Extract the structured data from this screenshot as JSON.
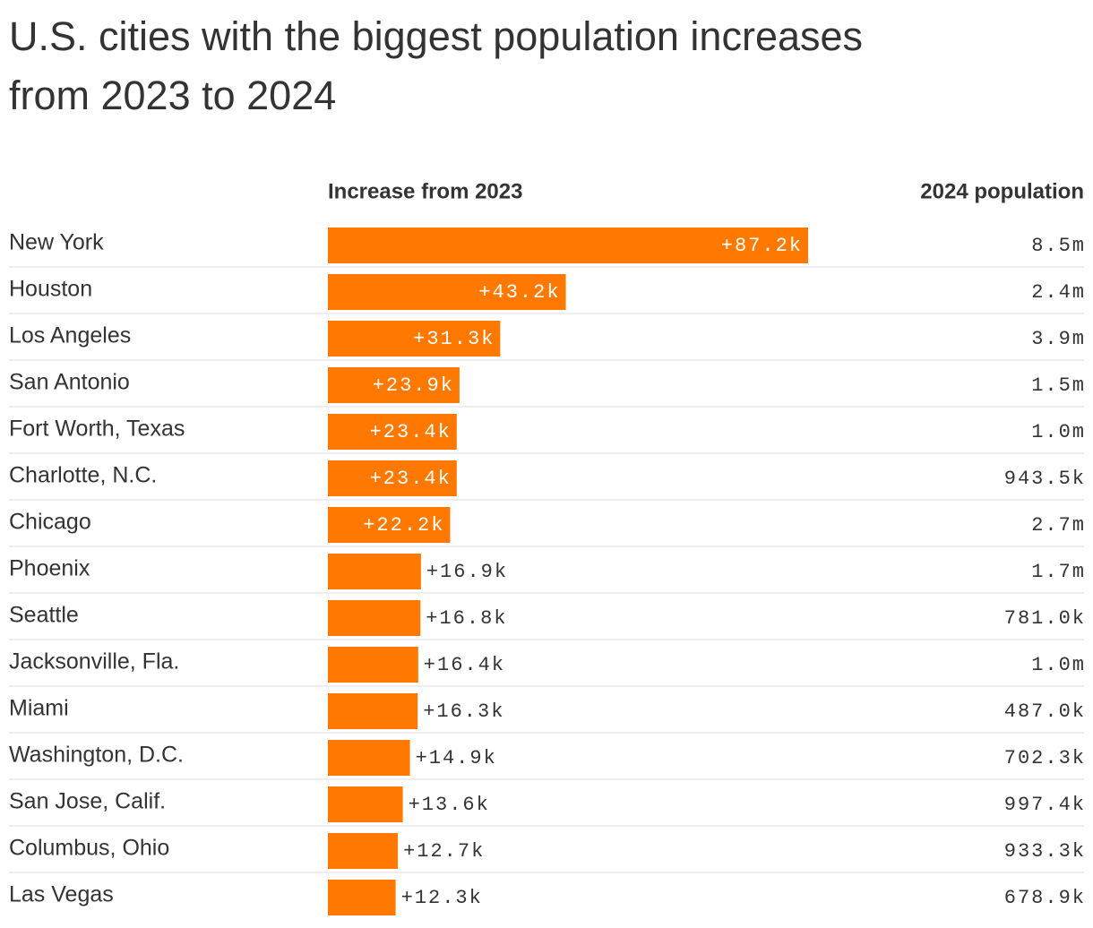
{
  "chart_data": {
    "type": "bar",
    "title_lines": [
      "U.S. cities with the biggest population increases",
      "from 2023 to 2024"
    ],
    "categories": [
      "New York",
      "Houston",
      "Los Angeles",
      "San Antonio",
      "Fort Worth, Texas",
      "Charlotte, N.C.",
      "Chicago",
      "Phoenix",
      "Seattle",
      "Jacksonville, Fla.",
      "Miami",
      "Washington, D.C.",
      "San Jose, Calif.",
      "Columbus, Ohio",
      "Las Vegas"
    ],
    "series": [
      {
        "name": "Increase from 2023",
        "color": "#ff7900",
        "values": [
          87200,
          43200,
          31300,
          23900,
          23400,
          23400,
          22200,
          16900,
          16800,
          16400,
          16300,
          14900,
          13600,
          12700,
          12300
        ],
        "value_labels": [
          "+87.2k",
          "+43.2k",
          "+31.3k",
          "+23.9k",
          "+23.4k",
          "+23.4k",
          "+22.2k",
          "+16.9k",
          "+16.8k",
          "+16.4k",
          "+16.3k",
          "+14.9k",
          "+13.6k",
          "+12.7k",
          "+12.3k"
        ]
      },
      {
        "name": "2024 population",
        "values": [
          8500000,
          2400000,
          3900000,
          1500000,
          1000000,
          943500,
          2700000,
          1700000,
          781000,
          1000000,
          487000,
          702300,
          997400,
          933300,
          678900
        ],
        "value_labels": [
          "8.5m",
          "2.4m",
          "3.9m",
          "1.5m",
          "1.0m",
          "943.5k",
          "2.7m",
          "1.7m",
          "781.0k",
          "1.0m",
          "487.0k",
          "702.3k",
          "997.4k",
          "933.3k",
          "678.9k"
        ]
      }
    ]
  }
}
